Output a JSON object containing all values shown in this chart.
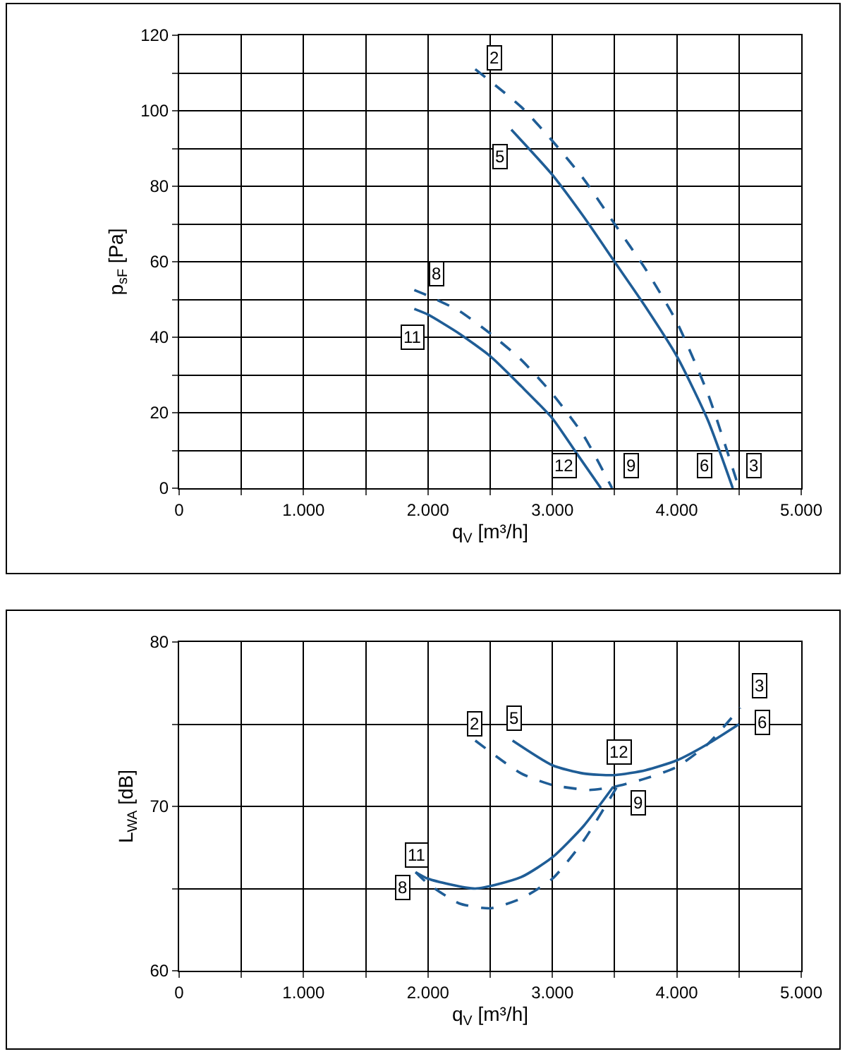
{
  "chart_data": [
    {
      "type": "line",
      "xlabel": "q$_{V}$ [m³/h]",
      "ylabel": "p$_{sF}$ [Pa]",
      "xlim": [
        0,
        5000
      ],
      "ylim": [
        0,
        120
      ],
      "xticks": [
        0,
        {
          "value": 500,
          "label": null
        },
        {
          "value": 1000,
          "label": "1.000"
        },
        {
          "value": 1500,
          "label": null
        },
        {
          "value": 2000,
          "label": "2.000"
        },
        {
          "value": 2500,
          "label": null
        },
        {
          "value": 3000,
          "label": "3.000"
        },
        {
          "value": 3500,
          "label": null
        },
        {
          "value": 4000,
          "label": "4.000"
        },
        {
          "value": 4500,
          "label": null
        },
        {
          "value": 5000,
          "label": "5.000"
        }
      ],
      "yticks": [
        0,
        {
          "value": 10,
          "label": null
        },
        20,
        {
          "value": 30,
          "label": null
        },
        40,
        {
          "value": 50,
          "label": null
        },
        60,
        {
          "value": 70,
          "label": null
        },
        80,
        {
          "value": 90,
          "label": null
        },
        100,
        {
          "value": 110,
          "label": null
        },
        120
      ],
      "grid": true,
      "series": [
        {
          "color": "#1f5d96",
          "line_style": "solid",
          "x": [
            2670,
            3000,
            3250,
            3500,
            3750,
            4000,
            4250,
            4450
          ],
          "values": [
            95,
            83,
            72,
            60,
            48,
            35,
            18,
            0
          ]
        },
        {
          "color": "#1f5d96",
          "line_style": "dashed",
          "x": [
            2380,
            2750,
            3000,
            3250,
            3500,
            3750,
            4000,
            4250,
            4500
          ],
          "values": [
            111,
            101,
            92,
            82,
            70,
            58,
            44,
            25,
            0
          ]
        },
        {
          "color": "#1f5d96",
          "line_style": "solid",
          "x": [
            1890,
            2000,
            2250,
            2500,
            2750,
            3000,
            3200,
            3390
          ],
          "values": [
            47.5,
            46,
            41,
            35,
            27,
            18.5,
            9,
            0
          ]
        },
        {
          "color": "#1f5d96",
          "line_style": "dashed",
          "x": [
            1890,
            2000,
            2250,
            2500,
            2750,
            3000,
            3250,
            3480
          ],
          "values": [
            52.5,
            51,
            47,
            41,
            34,
            25,
            14,
            0
          ]
        }
      ],
      "annotations": [
        {
          "text": "2",
          "x": 2530,
          "y": 114
        },
        {
          "text": "5",
          "x": 2580,
          "y": 88
        },
        {
          "text": "8",
          "x": 2070,
          "y": 57
        },
        {
          "text": "11",
          "x": 1880,
          "y": 40
        },
        {
          "text": "12",
          "x": 3100,
          "y": 6
        },
        {
          "text": "9",
          "x": 3630,
          "y": 6
        },
        {
          "text": "6",
          "x": 4220,
          "y": 6
        },
        {
          "text": "3",
          "x": 4620,
          "y": 6
        }
      ]
    },
    {
      "type": "line",
      "xlabel": "q$_{V}$ [m³/h]",
      "ylabel": "L$_{WA}$ [dB]",
      "xlim": [
        0,
        5000
      ],
      "ylim": [
        60,
        80
      ],
      "xticks": [
        0,
        {
          "value": 500,
          "label": null
        },
        {
          "value": 1000,
          "label": "1.000"
        },
        {
          "value": 1500,
          "label": null
        },
        {
          "value": 2000,
          "label": "2.000"
        },
        {
          "value": 2500,
          "label": null
        },
        {
          "value": 3000,
          "label": "3.000"
        },
        {
          "value": 3500,
          "label": null
        },
        {
          "value": 4000,
          "label": "4.000"
        },
        {
          "value": 4500,
          "label": null
        },
        {
          "value": 5000,
          "label": "5.000"
        }
      ],
      "yticks": [
        60,
        {
          "value": 65,
          "label": null
        },
        70,
        {
          "value": 75,
          "label": null
        },
        80
      ],
      "grid": true,
      "series": [
        {
          "color": "#1f5d96",
          "line_style": "solid",
          "x": [
            2680,
            3000,
            3250,
            3500,
            3750,
            4000,
            4250,
            4500
          ],
          "values": [
            74,
            72.5,
            72,
            71.9,
            72.2,
            72.8,
            73.8,
            75
          ]
        },
        {
          "color": "#1f5d96",
          "line_style": "dashed",
          "x": [
            2380,
            2750,
            3000,
            3300,
            3500,
            3750,
            4000,
            4250,
            4510
          ],
          "values": [
            74,
            72,
            71.3,
            71,
            71.2,
            71.7,
            72.4,
            73.8,
            76
          ]
        },
        {
          "color": "#1f5d96",
          "line_style": "solid",
          "x": [
            1900,
            2000,
            2380,
            2750,
            3000,
            3250,
            3490
          ],
          "values": [
            66,
            65.6,
            65,
            65.7,
            66.9,
            68.8,
            71.2
          ]
        },
        {
          "color": "#1f5d96",
          "line_style": "dashed",
          "x": [
            1900,
            2000,
            2250,
            2500,
            2750,
            3000,
            3250,
            3520
          ],
          "values": [
            66,
            65.3,
            64.1,
            63.8,
            64.4,
            65.6,
            67.9,
            71.2
          ]
        }
      ],
      "annotations": [
        {
          "text": "2",
          "x": 2370,
          "y": 75
        },
        {
          "text": "5",
          "x": 2690,
          "y": 75.4
        },
        {
          "text": "3",
          "x": 4660,
          "y": 77.3
        },
        {
          "text": "6",
          "x": 4690,
          "y": 75.1
        },
        {
          "text": "12",
          "x": 3540,
          "y": 73.3
        },
        {
          "text": "9",
          "x": 3690,
          "y": 70.2
        },
        {
          "text": "11",
          "x": 1910,
          "y": 67
        },
        {
          "text": "8",
          "x": 1800,
          "y": 65.1
        }
      ]
    }
  ]
}
